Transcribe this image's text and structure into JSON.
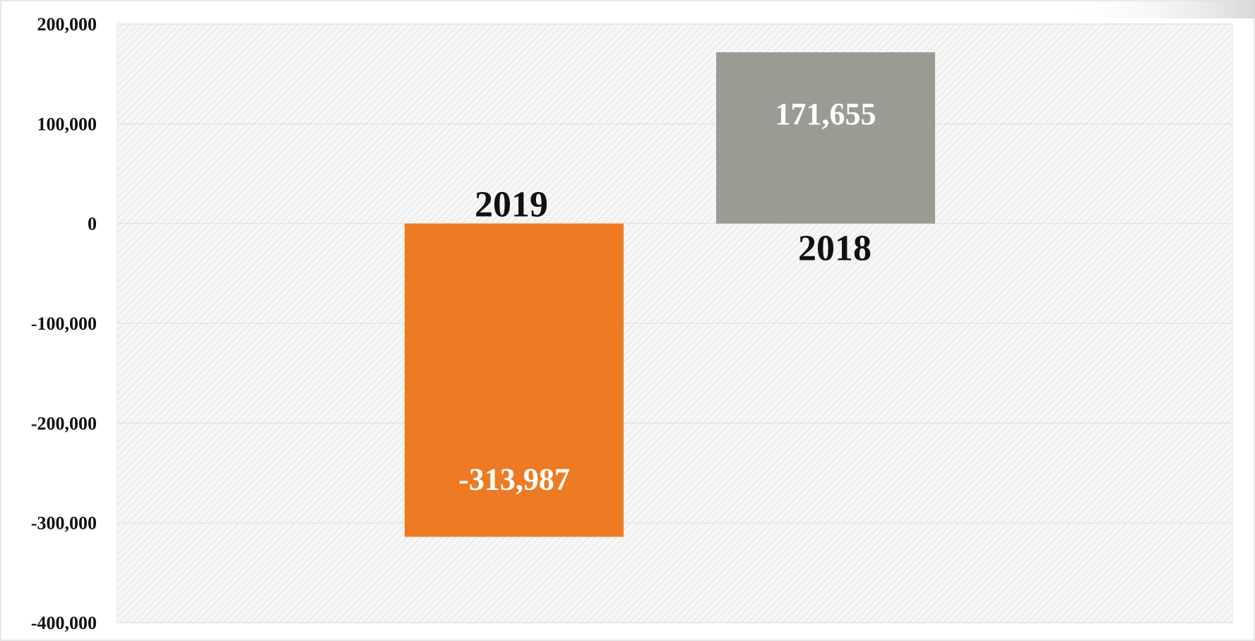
{
  "chart_data": {
    "type": "bar",
    "categories": [
      "2019",
      "2018"
    ],
    "values": [
      -313987,
      171655
    ],
    "data_labels": [
      "-313,987",
      "171,655"
    ],
    "colors": [
      "#ee7b23",
      "#9a9b92"
    ],
    "ylim": [
      -400000,
      200000
    ],
    "ytick_values": [
      200000,
      100000,
      0,
      -100000,
      -200000,
      -300000,
      -400000
    ],
    "ytick_labels": [
      "200,000",
      "100,000",
      "0",
      "-100,000",
      "-200,000",
      "-300,000",
      "-400,000"
    ],
    "grid": true,
    "legend": "none",
    "plot_background": "hatched light gray",
    "title": "",
    "xlabel": "",
    "ylabel": ""
  }
}
